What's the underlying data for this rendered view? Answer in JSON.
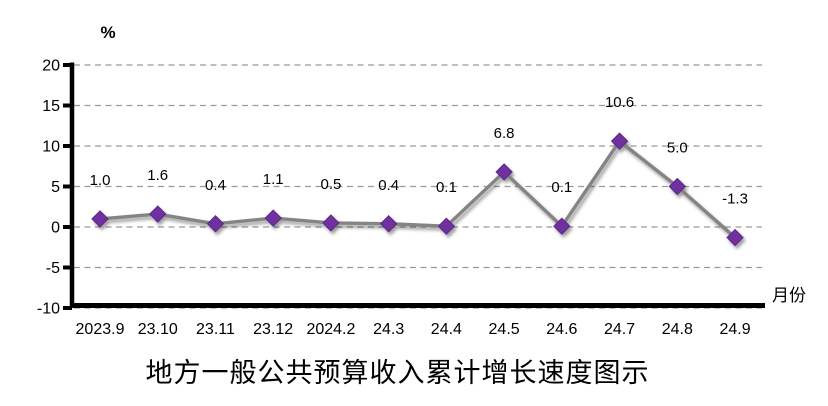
{
  "chart_data": {
    "type": "line",
    "title": "地方一般公共预算收入累计增长速度图示",
    "unit_label": "%",
    "xlabel": "月份",
    "categories": [
      "2023.9",
      "23.10",
      "23.11",
      "23.12",
      "2024.2",
      "24.3",
      "24.4",
      "24.5",
      "24.6",
      "24.7",
      "24.8",
      "24.9"
    ],
    "values": [
      1.0,
      1.6,
      0.4,
      1.1,
      0.5,
      0.4,
      0.1,
      6.8,
      0.1,
      10.6,
      5.0,
      -1.3
    ],
    "data_labels": [
      "1.0",
      "1.6",
      "0.4",
      "1.1",
      "0.5",
      "0.4",
      "0.1",
      "6.8",
      "0.1",
      "10.6",
      "5.0",
      "-1.3"
    ],
    "y_ticks": [
      20,
      15,
      10,
      5,
      0,
      -5,
      -10
    ],
    "ylim": [
      -10,
      20
    ],
    "grid": "dashed-horizontal",
    "legend": "none",
    "colors": {
      "marker": "#7030A0",
      "marker_edge": "#5C2786",
      "line": "#848484",
      "grid": "#999999",
      "axis": "#000000"
    }
  }
}
